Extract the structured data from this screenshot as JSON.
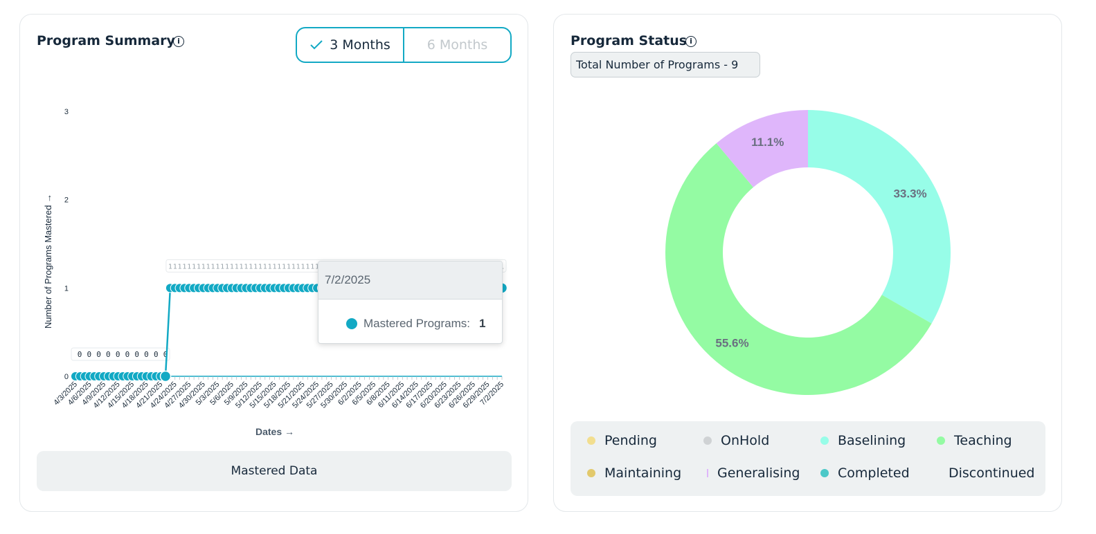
{
  "program_summary": {
    "title": "Program Summary",
    "info_icon": "info-icon",
    "toggle": {
      "options": [
        "3 Months",
        "6 Months"
      ],
      "selected": "3 Months",
      "selected_icon": "checkmark-icon",
      "accent": "#12a9c4"
    },
    "mastered_data_button": "Mastered Data",
    "tooltip": {
      "date": "7/2/2025",
      "label": "Mastered Programs:",
      "value": "1"
    }
  },
  "program_status": {
    "title": "Program Status",
    "info_icon": "info-icon",
    "total_label": "Total Number of Programs - 9",
    "legend": [
      {
        "label": "Pending",
        "color": "#f2de8f",
        "marker": "dot"
      },
      {
        "label": "OnHold",
        "color": "#cfd2d4",
        "marker": "dot"
      },
      {
        "label": "Baselining",
        "color": "#97fde8",
        "marker": "dot"
      },
      {
        "label": "Teaching",
        "color": "#94fba3",
        "marker": "dot"
      },
      {
        "label": "Maintaining",
        "color": "#e2c96c",
        "marker": "dot"
      },
      {
        "label": "Generalising",
        "color": "#dfb6fb",
        "marker": "bar"
      },
      {
        "label": "Completed",
        "color": "#4cc8c8",
        "marker": "dot"
      },
      {
        "label": "Discontinued",
        "color": "",
        "marker": "none"
      }
    ]
  },
  "chart_data": [
    {
      "type": "line",
      "title": "",
      "xlabel": "Dates →",
      "ylabel": "Number of Programs Mastered →",
      "ylim": [
        0,
        3
      ],
      "yticks": [
        0,
        1,
        2,
        3
      ],
      "x_tick_labels": [
        "4/3/2025",
        "4/6/2025",
        "4/9/2025",
        "4/12/2025",
        "4/15/2025",
        "4/18/2025",
        "4/21/2025",
        "4/24/2025",
        "4/27/2025",
        "4/30/2025",
        "5/3/2025",
        "5/6/2025",
        "5/9/2025",
        "5/12/2025",
        "5/15/2025",
        "5/18/2025",
        "5/21/2025",
        "5/24/2025",
        "5/27/2025",
        "5/30/2025",
        "6/2/2025",
        "6/5/2025",
        "6/8/2025",
        "6/11/2025",
        "6/14/2025",
        "6/17/2025",
        "6/20/2025",
        "6/23/2025",
        "6/26/2025",
        "6/29/2025",
        "7/2/2025"
      ],
      "x_start": "4/3/2025",
      "x_end": "7/2/2025",
      "series": [
        {
          "name": "Mastered Programs",
          "color": "#12a9c4",
          "segments": [
            {
              "from": "4/3/2025",
              "to": "4/22/2025",
              "value": 0
            },
            {
              "from": "4/23/2025",
              "to": "7/2/2025",
              "value": 1
            }
          ]
        }
      ],
      "data_labels": true,
      "grid": false
    },
    {
      "type": "pie",
      "donut": true,
      "slices": [
        {
          "label": "Baselining",
          "value": 33.3,
          "display": "33.3%",
          "color": "#97fde8"
        },
        {
          "label": "Teaching",
          "value": 55.6,
          "display": "55.6%",
          "color": "#94fba3"
        },
        {
          "label": "Generalising",
          "value": 11.1,
          "display": "11.1%",
          "color": "#dfb6fb"
        }
      ]
    }
  ]
}
